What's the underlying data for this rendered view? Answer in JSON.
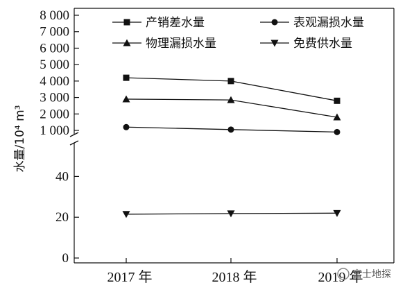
{
  "chart_data": {
    "type": "line",
    "categories": [
      "2017 年",
      "2018 年",
      "2019 年"
    ],
    "ylabel": "水量/10⁴ m³",
    "axis_break": true,
    "upper_ylim": [
      0,
      8000
    ],
    "upper_yticks": [
      "1 000",
      "2 000",
      "3 000",
      "4 000",
      "5 000",
      "6 000",
      "7 000",
      "8 000"
    ],
    "lower_ylim": [
      0,
      50
    ],
    "lower_yticks": [
      "0",
      "20",
      "40"
    ],
    "legend_position": "top",
    "series": [
      {
        "name": "产销差水量",
        "marker": "square",
        "segment": "upper",
        "values": [
          4200,
          4000,
          2800
        ]
      },
      {
        "name": "表观漏损水量",
        "marker": "circle",
        "segment": "upper",
        "values": [
          1200,
          1050,
          900
        ]
      },
      {
        "name": "物理漏损水量",
        "marker": "triangle-up",
        "segment": "upper",
        "values": [
          2900,
          2850,
          1800
        ]
      },
      {
        "name": "免费供水量",
        "marker": "triangle-down",
        "segment": "lower",
        "values": [
          21.5,
          21.8,
          22.0
        ]
      }
    ],
    "watermark": "富士地探"
  }
}
